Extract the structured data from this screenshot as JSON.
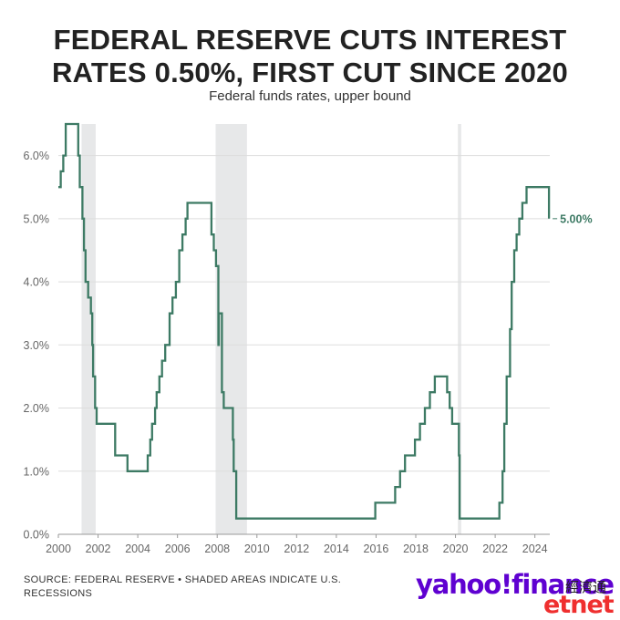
{
  "header": {
    "title_line1": "FEDERAL RESERVE CUTS INTEREST",
    "title_line2": "RATES 0.50%, FIRST CUT SINCE 2020",
    "subtitle": "Federal funds rates, upper bound"
  },
  "footer": {
    "source_line1": "SOURCE: FEDERAL RESERVE • SHADED AREAS INDICATE U.S.",
    "source_line2": "RECESSIONS",
    "logo": "yahoo!finance",
    "watermark_cn": "經濟通",
    "watermark": "etnet"
  },
  "chart_data": {
    "type": "line",
    "series": [
      {
        "color": "#3d7a64",
        "points": [
          [
            2000.0,
            5.5
          ],
          [
            2000.12,
            5.75
          ],
          [
            2000.25,
            6.0
          ],
          [
            2000.37,
            6.5
          ],
          [
            2001.0,
            6.0
          ],
          [
            2001.08,
            5.5
          ],
          [
            2001.21,
            5.0
          ],
          [
            2001.29,
            4.5
          ],
          [
            2001.37,
            4.0
          ],
          [
            2001.5,
            3.75
          ],
          [
            2001.64,
            3.5
          ],
          [
            2001.71,
            3.0
          ],
          [
            2001.75,
            2.5
          ],
          [
            2001.85,
            2.0
          ],
          [
            2001.93,
            1.75
          ],
          [
            2002.86,
            1.25
          ],
          [
            2003.48,
            1.0
          ],
          [
            2004.5,
            1.25
          ],
          [
            2004.63,
            1.5
          ],
          [
            2004.72,
            1.75
          ],
          [
            2004.87,
            2.0
          ],
          [
            2004.95,
            2.25
          ],
          [
            2005.09,
            2.5
          ],
          [
            2005.22,
            2.75
          ],
          [
            2005.38,
            3.0
          ],
          [
            2005.6,
            3.5
          ],
          [
            2005.75,
            3.75
          ],
          [
            2005.92,
            4.0
          ],
          [
            2006.09,
            4.5
          ],
          [
            2006.25,
            4.75
          ],
          [
            2006.41,
            5.0
          ],
          [
            2006.5,
            5.25
          ],
          [
            2007.71,
            4.75
          ],
          [
            2007.83,
            4.5
          ],
          [
            2007.94,
            4.25
          ],
          [
            2008.06,
            3.0
          ],
          [
            2008.08,
            3.5
          ],
          [
            2008.24,
            2.25
          ],
          [
            2008.33,
            2.0
          ],
          [
            2008.79,
            1.5
          ],
          [
            2008.83,
            1.0
          ],
          [
            2008.96,
            0.25
          ],
          [
            2015.96,
            0.5
          ],
          [
            2016.96,
            0.75
          ],
          [
            2017.21,
            1.0
          ],
          [
            2017.46,
            1.25
          ],
          [
            2017.96,
            1.5
          ],
          [
            2018.21,
            1.75
          ],
          [
            2018.46,
            2.0
          ],
          [
            2018.71,
            2.25
          ],
          [
            2018.96,
            2.5
          ],
          [
            2019.58,
            2.25
          ],
          [
            2019.71,
            2.0
          ],
          [
            2019.83,
            1.75
          ],
          [
            2020.17,
            1.25
          ],
          [
            2020.21,
            0.25
          ],
          [
            2022.21,
            0.5
          ],
          [
            2022.37,
            1.0
          ],
          [
            2022.46,
            1.75
          ],
          [
            2022.58,
            2.5
          ],
          [
            2022.75,
            3.25
          ],
          [
            2022.83,
            4.0
          ],
          [
            2022.96,
            4.5
          ],
          [
            2023.08,
            4.75
          ],
          [
            2023.21,
            5.0
          ],
          [
            2023.37,
            5.25
          ],
          [
            2023.58,
            5.5
          ],
          [
            2024.71,
            5.0
          ]
        ]
      }
    ],
    "end_label": "5.00%",
    "recessions": [
      [
        2001.17,
        2001.88
      ],
      [
        2007.92,
        2009.5
      ],
      [
        2020.12,
        2020.29
      ]
    ],
    "x_ticks": [
      "2000",
      "2002",
      "2004",
      "2006",
      "2008",
      "2010",
      "2012",
      "2014",
      "2016",
      "2018",
      "2020",
      "2022",
      "2024"
    ],
    "y_ticks": [
      "0.0%",
      "1.0%",
      "2.0%",
      "3.0%",
      "4.0%",
      "5.0%",
      "6.0%"
    ],
    "xlim": [
      2000,
      2024.75
    ],
    "ylim": [
      0,
      6.5
    ],
    "grid": true,
    "colors": {
      "line": "#3d7a64",
      "recession": "#e7e8e9",
      "grid": "#dddddd"
    }
  }
}
